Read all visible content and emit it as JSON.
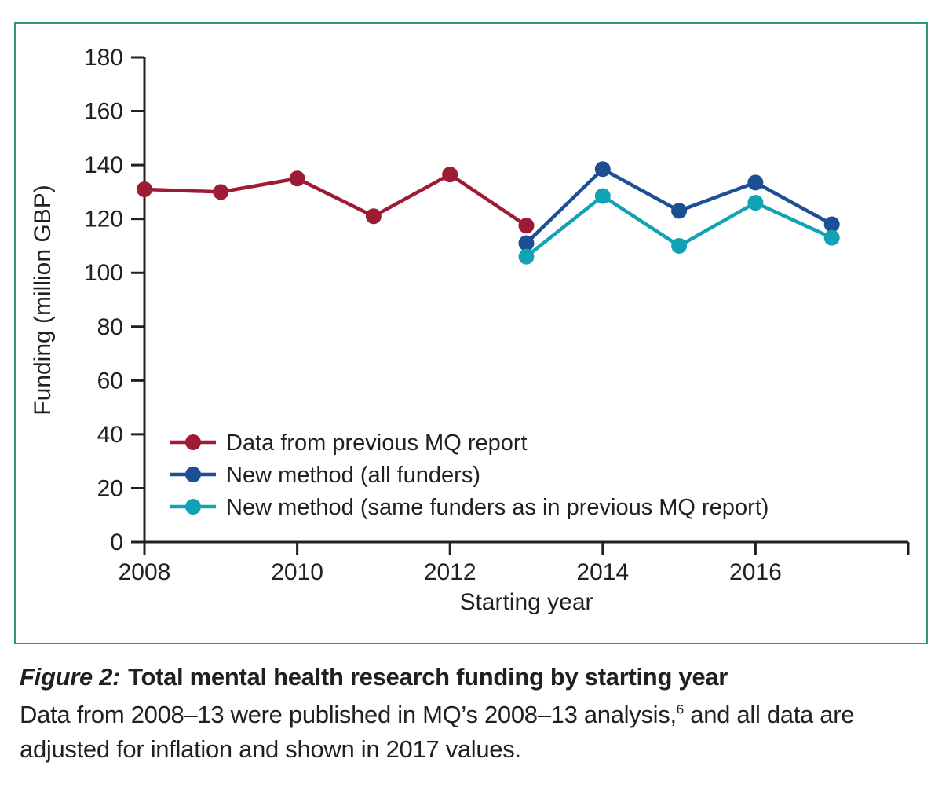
{
  "figure": {
    "caption_label": "Figure 2:",
    "caption_title": "Total mental health research funding by starting year",
    "caption_body_pre": "Data from 2008–13 were published in MQ’s 2008–13 analysis,",
    "caption_superscript": "6",
    "caption_body_post": " and all data are adjusted for inflation and shown in 2017 values."
  },
  "colors": {
    "frame": "#2f9679",
    "axis": "#231f20",
    "text": "#231f20",
    "series_red": "#9e1b34",
    "series_blue": "#1d4f94",
    "series_cyan": "#12a2b5"
  },
  "chart_data": {
    "type": "line",
    "title": "",
    "xlabel": "Starting year",
    "ylabel": "Funding (million GBP)",
    "xlim": [
      2008,
      2018
    ],
    "ylim": [
      0,
      180
    ],
    "x_ticks": [
      2008,
      2010,
      2012,
      2014,
      2016
    ],
    "y_ticks": [
      0,
      20,
      40,
      60,
      80,
      100,
      120,
      140,
      160,
      180
    ],
    "grid": false,
    "legend_position": "inside-lower-left",
    "series": [
      {
        "name": "Data from previous MQ report",
        "color": "#9e1b34",
        "x": [
          2008,
          2009,
          2010,
          2011,
          2012,
          2013
        ],
        "values": [
          131,
          130,
          135,
          121,
          136.5,
          117.5
        ]
      },
      {
        "name": "New method (all funders)",
        "color": "#1d4f94",
        "x": [
          2013,
          2014,
          2015,
          2016,
          2017
        ],
        "values": [
          111,
          138.5,
          123,
          133.5,
          118
        ]
      },
      {
        "name": "New method (same funders as in previous MQ report)",
        "color": "#12a2b5",
        "x": [
          2013,
          2014,
          2015,
          2016,
          2017
        ],
        "values": [
          106,
          128.5,
          110,
          126,
          113
        ]
      }
    ]
  }
}
